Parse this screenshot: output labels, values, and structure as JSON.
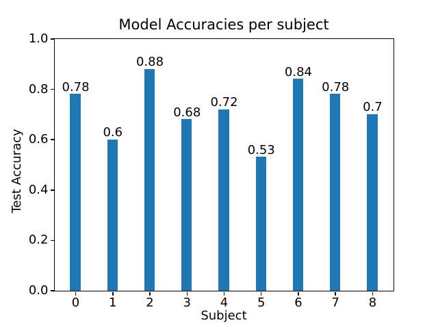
{
  "chart_data": {
    "type": "bar",
    "title": "Model Accuracies per subject",
    "xlabel": "Subject",
    "ylabel": "Test Accuracy",
    "categories": [
      0,
      1,
      2,
      3,
      4,
      5,
      6,
      7,
      8
    ],
    "values": [
      0.78,
      0.6,
      0.88,
      0.68,
      0.72,
      0.53,
      0.84,
      0.78,
      0.7
    ],
    "bar_labels": [
      "0.78",
      "0.6",
      "0.88",
      "0.68",
      "0.72",
      "0.53",
      "0.84",
      "0.78",
      "0.7"
    ],
    "yticks": [
      0.0,
      0.2,
      0.4,
      0.6,
      0.8,
      1.0
    ],
    "ytick_labels": [
      "0.0",
      "0.2",
      "0.4",
      "0.6",
      "0.8",
      "1.0"
    ],
    "xtick_labels": [
      "0",
      "1",
      "2",
      "3",
      "4",
      "5",
      "6",
      "7",
      "8"
    ],
    "ylim": [
      0.0,
      1.0
    ],
    "xlim": [
      -0.563,
      8.563
    ],
    "bar_width_data_units": 0.28,
    "bar_color": "#1f77b4",
    "text_color": "#000000",
    "spine_color": "#000000",
    "background_color": "#ffffff",
    "grid": false,
    "legend": null
  }
}
